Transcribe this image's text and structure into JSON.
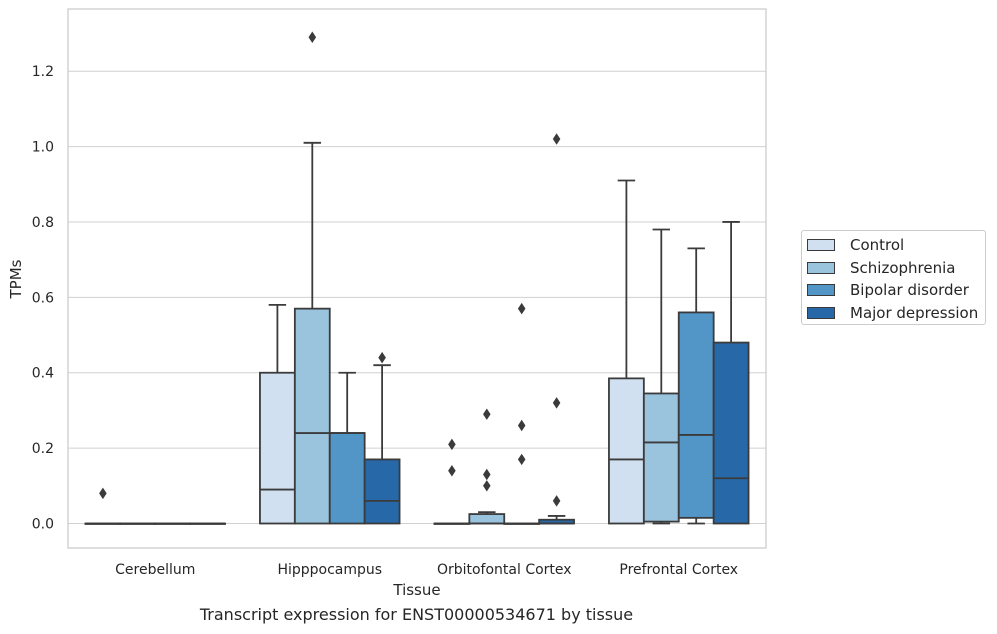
{
  "chart_data": {
    "type": "box",
    "caption": "Transcript expression for ENST00000534671 by tissue",
    "xlabel": "Tissue",
    "ylabel": "TPMs",
    "ylim": [
      -0.065,
      1.365
    ],
    "yticks": [
      0.0,
      0.2,
      0.4,
      0.6,
      0.8,
      1.0,
      1.2
    ],
    "ytick_labels": [
      "0.0",
      "0.2",
      "0.4",
      "0.6",
      "0.8",
      "1.0",
      "1.2"
    ],
    "grid": "horizontal",
    "legend_position": "right",
    "categories": [
      "Cerebellum",
      "Hipppocampus",
      "Orbitofontal Cortex",
      "Prefrontal Cortex"
    ],
    "series": [
      {
        "name": "Control",
        "color": "#d0e0f1",
        "boxes": [
          {
            "whislo": 0,
            "q1": 0,
            "med": 0,
            "q3": 0,
            "whishi": 0,
            "fliers": [
              0.08
            ]
          },
          {
            "whislo": 0,
            "q1": 0,
            "med": 0.09,
            "q3": 0.4,
            "whishi": 0.58,
            "fliers": []
          },
          {
            "whislo": 0,
            "q1": 0,
            "med": 0,
            "q3": 0,
            "whishi": 0,
            "fliers": [
              0.14,
              0.21
            ]
          },
          {
            "whislo": 0,
            "q1": 0,
            "med": 0.17,
            "q3": 0.385,
            "whishi": 0.91,
            "fliers": []
          }
        ]
      },
      {
        "name": "Schizophrenia",
        "color": "#9ac4de",
        "boxes": [
          {
            "whislo": 0,
            "q1": 0,
            "med": 0,
            "q3": 0,
            "whishi": 0,
            "fliers": []
          },
          {
            "whislo": 0,
            "q1": 0,
            "med": 0.24,
            "q3": 0.57,
            "whishi": 1.01,
            "fliers": [
              1.29
            ]
          },
          {
            "whislo": 0,
            "q1": 0,
            "med": 0,
            "q3": 0.025,
            "whishi": 0.03,
            "fliers": [
              0.1,
              0.13,
              0.29
            ]
          },
          {
            "whislo": 0,
            "q1": 0.005,
            "med": 0.215,
            "q3": 0.345,
            "whishi": 0.78,
            "fliers": []
          }
        ]
      },
      {
        "name": "Bipolar disorder",
        "color": "#5296c7",
        "boxes": [
          {
            "whislo": 0,
            "q1": 0,
            "med": 0,
            "q3": 0,
            "whishi": 0,
            "fliers": []
          },
          {
            "whislo": 0,
            "q1": 0,
            "med": 0.24,
            "q3": 0.24,
            "whishi": 0.4,
            "fliers": []
          },
          {
            "whislo": 0,
            "q1": 0,
            "med": 0,
            "q3": 0,
            "whishi": 0,
            "fliers": [
              0.17,
              0.26,
              0.57
            ]
          },
          {
            "whislo": 0,
            "q1": 0.015,
            "med": 0.235,
            "q3": 0.56,
            "whishi": 0.73,
            "fliers": []
          }
        ]
      },
      {
        "name": "Major depression",
        "color": "#2668a8",
        "boxes": [
          {
            "whislo": 0,
            "q1": 0,
            "med": 0,
            "q3": 0,
            "whishi": 0,
            "fliers": []
          },
          {
            "whislo": 0,
            "q1": 0,
            "med": 0.06,
            "q3": 0.17,
            "whishi": 0.42,
            "fliers": [
              0.44
            ]
          },
          {
            "whislo": 0,
            "q1": 0,
            "med": 0,
            "q3": 0.01,
            "whishi": 0.02,
            "fliers": [
              0.06,
              0.32,
              1.02
            ]
          },
          {
            "whislo": 0,
            "q1": 0,
            "med": 0.12,
            "q3": 0.48,
            "whishi": 0.8,
            "fliers": []
          }
        ]
      }
    ]
  }
}
